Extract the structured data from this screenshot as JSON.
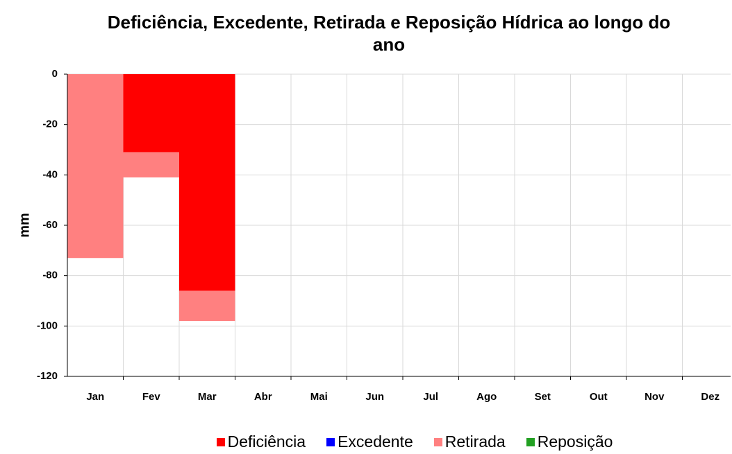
{
  "chart_data": {
    "type": "bar",
    "stacked": true,
    "title": "Deficiência, Excedente, Retirada e Reposição Hídrica ao longo do ano",
    "y_label": "mm",
    "categories": [
      "Jan",
      "Fev",
      "Mar",
      "Abr",
      "Mai",
      "Jun",
      "Jul",
      "Ago",
      "Set",
      "Out",
      "Nov",
      "Dez"
    ],
    "series": [
      {
        "name": "Deficiência",
        "color": "#ff0000",
        "values": [
          0,
          -31,
          -86,
          0,
          0,
          0,
          0,
          0,
          0,
          0,
          0,
          0
        ]
      },
      {
        "name": "Excedente",
        "color": "#0000ff",
        "values": [
          0,
          0,
          0,
          0,
          0,
          0,
          0,
          0,
          0,
          0,
          0,
          0
        ]
      },
      {
        "name": "Retirada",
        "color": "#ff8080",
        "values": [
          -73,
          -10,
          -12,
          0,
          0,
          0,
          0,
          0,
          0,
          0,
          0,
          0
        ]
      },
      {
        "name": "Reposição",
        "color": "#22a022",
        "values": [
          0,
          0,
          0,
          0,
          0,
          0,
          0,
          0,
          0,
          0,
          0,
          0
        ]
      }
    ],
    "ylim": [
      -120,
      0
    ],
    "yticks": [
      -120,
      -100,
      -80,
      -60,
      -40,
      -20,
      0
    ],
    "grid": true,
    "legend": "bottom"
  }
}
